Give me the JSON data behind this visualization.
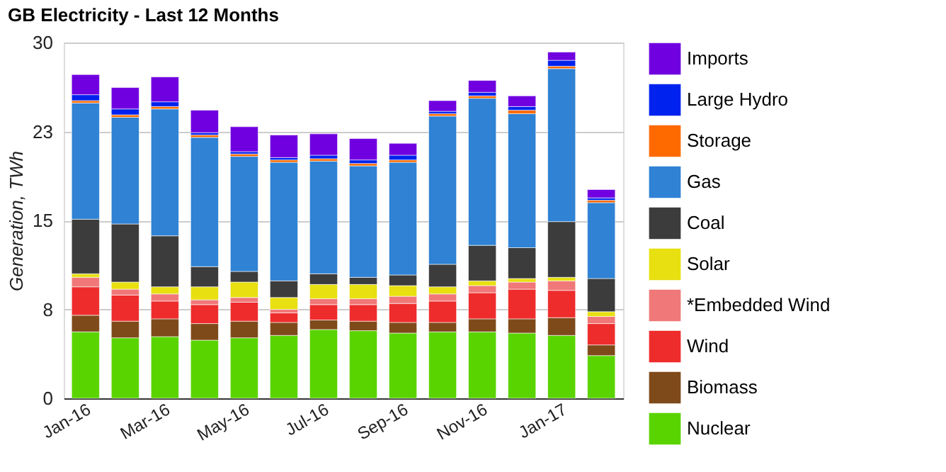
{
  "chart_data": {
    "type": "bar",
    "title": "GB Electricity - Last 12 Months",
    "ylabel": "Generation, TWh",
    "stacked": true,
    "categories": [
      "Jan-16",
      null,
      "Mar-16",
      null,
      "May-16",
      null,
      "Jul-16",
      null,
      "Sep-16",
      null,
      "Nov-16",
      null,
      "Jan-17",
      null
    ],
    "series": [
      {
        "name": "Nuclear",
        "color": "#5ad400",
        "values": [
          5.6,
          5.1,
          5.2,
          4.9,
          5.1,
          5.3,
          5.8,
          5.7,
          5.5,
          5.6,
          5.6,
          5.5,
          5.3,
          3.6
        ]
      },
      {
        "name": "Biomass",
        "color": "#7f4a1a",
        "values": [
          1.4,
          1.4,
          1.5,
          1.4,
          1.4,
          1.1,
          0.8,
          0.8,
          0.9,
          0.8,
          1.1,
          1.2,
          1.5,
          0.9
        ]
      },
      {
        "name": "Wind",
        "color": "#ee2c2c",
        "values": [
          2.4,
          2.2,
          1.5,
          1.6,
          1.6,
          0.8,
          1.3,
          1.4,
          1.6,
          1.8,
          2.2,
          2.5,
          2.3,
          1.8
        ]
      },
      {
        "name": "*Embedded Wind",
        "color": "#f07878",
        "values": [
          0.8,
          0.5,
          0.6,
          0.4,
          0.4,
          0.3,
          0.5,
          0.5,
          0.6,
          0.6,
          0.6,
          0.6,
          0.8,
          0.6
        ]
      },
      {
        "name": "Solar",
        "color": "#e8e010",
        "values": [
          0.3,
          0.6,
          0.6,
          1.1,
          1.3,
          1.0,
          1.2,
          1.2,
          0.9,
          0.6,
          0.4,
          0.3,
          0.3,
          0.4
        ]
      },
      {
        "name": "Coal",
        "color": "#3c3c3c",
        "values": [
          4.6,
          4.9,
          4.3,
          1.7,
          0.9,
          1.4,
          0.9,
          0.6,
          0.9,
          1.9,
          3.0,
          2.6,
          4.7,
          2.8
        ]
      },
      {
        "name": "Gas",
        "color": "#2f82d4",
        "values": [
          9.8,
          9.0,
          10.7,
          10.9,
          9.7,
          10.0,
          9.5,
          9.4,
          9.5,
          12.5,
          12.4,
          11.3,
          12.9,
          6.4
        ]
      },
      {
        "name": "Storage",
        "color": "#ff6a00",
        "values": [
          0.2,
          0.2,
          0.2,
          0.2,
          0.2,
          0.2,
          0.2,
          0.2,
          0.2,
          0.2,
          0.2,
          0.3,
          0.2,
          0.2
        ]
      },
      {
        "name": "Large Hydro",
        "color": "#0022ee",
        "values": [
          0.5,
          0.5,
          0.4,
          0.2,
          0.2,
          0.2,
          0.3,
          0.3,
          0.4,
          0.2,
          0.3,
          0.3,
          0.5,
          0.2
        ]
      },
      {
        "name": "Imports",
        "color": "#7000e0",
        "values": [
          1.7,
          1.8,
          2.1,
          1.9,
          2.1,
          1.9,
          1.8,
          1.8,
          1.0,
          0.9,
          1.0,
          0.9,
          0.7,
          0.7
        ]
      }
    ],
    "ylim": [
      0,
      30
    ],
    "yticks": [
      0,
      {
        "value": 7.5,
        "label": "8"
      },
      15,
      {
        "value": 22.5,
        "label": "23"
      },
      30
    ],
    "grid": "y",
    "legend": "right"
  }
}
